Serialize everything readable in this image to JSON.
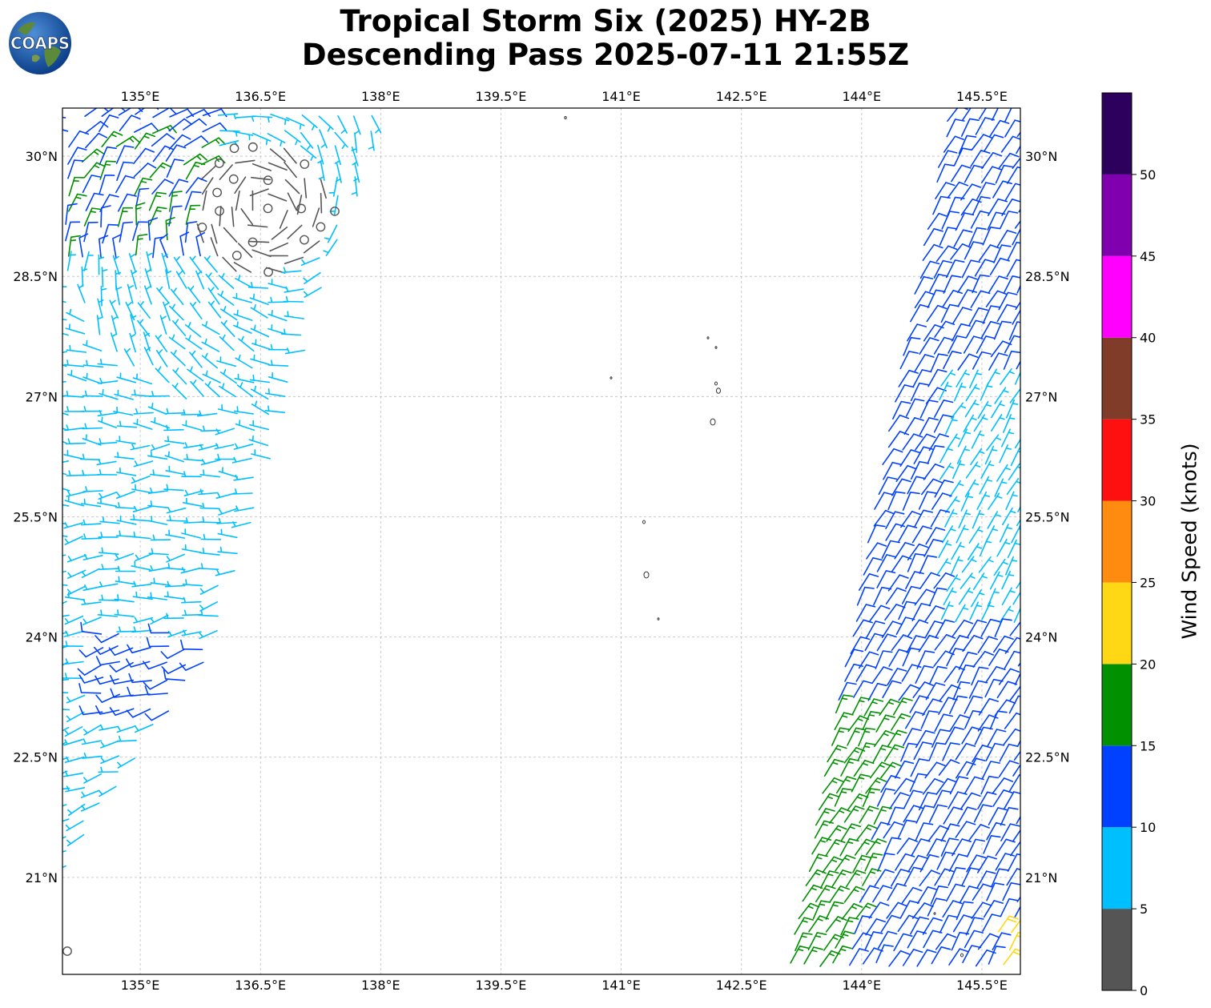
{
  "header": {
    "title_line1": "Tropical Storm Six (2025) HY-2B",
    "title_line2": "Descending Pass 2025-07-11 21:55Z",
    "logo_text": "COAPS"
  },
  "map": {
    "lon_ticks": [
      "135°E",
      "136.5°E",
      "138°E",
      "139.5°E",
      "141°E",
      "142.5°E",
      "144°E",
      "145.5°E"
    ],
    "lat_ticks": [
      "30°N",
      "28.5°N",
      "27°N",
      "25.5°N",
      "24°N",
      "22.5°N",
      "21°N"
    ],
    "lon_values": [
      135,
      136.5,
      138,
      139.5,
      141,
      142.5,
      144,
      145.5
    ],
    "lat_values": [
      30,
      28.5,
      27,
      25.5,
      24,
      22.5,
      21
    ],
    "extent": {
      "lon_min": 134.03,
      "lon_max": 145.98,
      "lat_min": 19.79,
      "lat_max": 30.6
    },
    "gridlines": true,
    "land_color": "#ffffff",
    "coast_color": "#333333"
  },
  "colorbar": {
    "label": "Wind Speed (knots)",
    "ticks": [
      "0",
      "5",
      "10",
      "15",
      "20",
      "25",
      "30",
      "35",
      "40",
      "45",
      "50"
    ],
    "bins": [
      {
        "from": 0,
        "to": 5,
        "color": "#555555"
      },
      {
        "from": 5,
        "to": 10,
        "color": "#00bfff"
      },
      {
        "from": 10,
        "to": 15,
        "color": "#0040ff"
      },
      {
        "from": 15,
        "to": 20,
        "color": "#009000"
      },
      {
        "from": 20,
        "to": 25,
        "color": "#ffd815"
      },
      {
        "from": 25,
        "to": 30,
        "color": "#ff8c10"
      },
      {
        "from": 30,
        "to": 35,
        "color": "#ff1010"
      },
      {
        "from": 35,
        "to": 40,
        "color": "#803c28"
      },
      {
        "from": 40,
        "to": 45,
        "color": "#ff00ff"
      },
      {
        "from": 45,
        "to": 50,
        "color": "#8000b0"
      },
      {
        "from": 50,
        "to": 55,
        "color": "#2c005c"
      }
    ]
  }
}
